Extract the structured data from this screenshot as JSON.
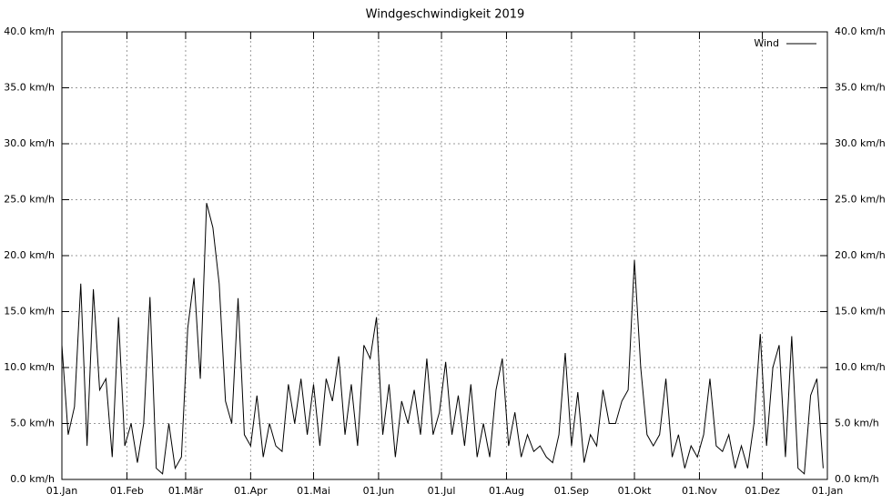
{
  "chart_data": {
    "type": "line",
    "title": "Windgeschwindigkeit 2019",
    "x": [
      0,
      3,
      6,
      9,
      12,
      15,
      18,
      21,
      24,
      27,
      30,
      33,
      36,
      39,
      42,
      45,
      48,
      51,
      54,
      57,
      60,
      63,
      66,
      69,
      72,
      75,
      78,
      81,
      84,
      87,
      90,
      93,
      96,
      99,
      102,
      105,
      108,
      111,
      114,
      117,
      120,
      123,
      126,
      129,
      132,
      135,
      138,
      141,
      144,
      147,
      150,
      153,
      156,
      159,
      162,
      165,
      168,
      171,
      174,
      177,
      180,
      183,
      186,
      189,
      192,
      195,
      198,
      201,
      204,
      207,
      210,
      213,
      216,
      219,
      222,
      225,
      228,
      231,
      234,
      237,
      240,
      243,
      246,
      249,
      252,
      255,
      258,
      261,
      264,
      267,
      270,
      273,
      276,
      279,
      282,
      285,
      288,
      291,
      294,
      297,
      300,
      303,
      306,
      309,
      312,
      315,
      318,
      321,
      324,
      327,
      330,
      333,
      336,
      339,
      342,
      345,
      348,
      351,
      354,
      357,
      360,
      363
    ],
    "series": [
      {
        "name": "Wind",
        "color": "#000000",
        "values": [
          12,
          4,
          6.5,
          17.5,
          3,
          17,
          8,
          9,
          2,
          14.5,
          3,
          5,
          1.5,
          5,
          16.3,
          1,
          0.5,
          5,
          1,
          2,
          13.5,
          18,
          9,
          24.7,
          22.5,
          17.5,
          7,
          5,
          16.2,
          4,
          3,
          7.5,
          2,
          5,
          3,
          2.5,
          8.5,
          5,
          9,
          4,
          8.5,
          3,
          9,
          7,
          11,
          4,
          8.5,
          3,
          12,
          10.8,
          14.5,
          4,
          8.5,
          2,
          7,
          5,
          8,
          4,
          10.8,
          4,
          6,
          10.5,
          4,
          7.5,
          3,
          8.5,
          2,
          5,
          2,
          8,
          10.8,
          3,
          6,
          2,
          4,
          2.5,
          3,
          2,
          1.5,
          4,
          11.3,
          3,
          7.8,
          1.5,
          4,
          3,
          8,
          5,
          5,
          7,
          8,
          19.6,
          10,
          4,
          3,
          4,
          9,
          2,
          4,
          1,
          3,
          2,
          4,
          9,
          3,
          2.5,
          4,
          1,
          3,
          1,
          5,
          13,
          3,
          10,
          12,
          2,
          12.8,
          1,
          0.5,
          7.5,
          9,
          1
        ]
      }
    ],
    "xlim": [
      0,
      365
    ],
    "xticks": [
      {
        "value": 0,
        "label": "01.Jan"
      },
      {
        "value": 31,
        "label": "01.Feb"
      },
      {
        "value": 59,
        "label": "01.Mär"
      },
      {
        "value": 90,
        "label": "01.Apr"
      },
      {
        "value": 120,
        "label": "01.Mai"
      },
      {
        "value": 151,
        "label": "01.Jun"
      },
      {
        "value": 181,
        "label": "01.Jul"
      },
      {
        "value": 212,
        "label": "01.Aug"
      },
      {
        "value": 243,
        "label": "01.Sep"
      },
      {
        "value": 273,
        "label": "01.Okt"
      },
      {
        "value": 304,
        "label": "01.Nov"
      },
      {
        "value": 334,
        "label": "01.Dez"
      },
      {
        "value": 365,
        "label": "01.Jan"
      }
    ],
    "ylim": [
      0,
      40
    ],
    "yticks": [
      {
        "value": 0,
        "label": "0.0 km/h"
      },
      {
        "value": 5,
        "label": "5.0 km/h"
      },
      {
        "value": 10,
        "label": "10.0 km/h"
      },
      {
        "value": 15,
        "label": "15.0 km/h"
      },
      {
        "value": 20,
        "label": "20.0 km/h"
      },
      {
        "value": 25,
        "label": "25.0 km/h"
      },
      {
        "value": 30,
        "label": "30.0 km/h"
      },
      {
        "value": 35,
        "label": "35.0 km/h"
      },
      {
        "value": 40,
        "label": "40.0 km/h"
      }
    ],
    "grid": true,
    "legend": "top-right"
  }
}
